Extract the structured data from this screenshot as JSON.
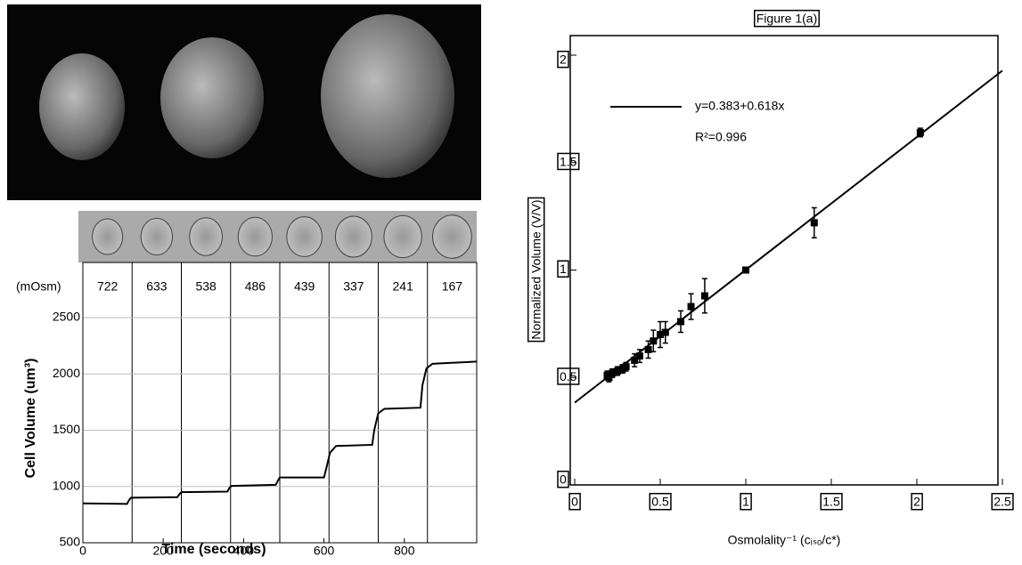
{
  "chart_data": [
    {
      "type": "line",
      "ylabel": "Cell Volume (um³)",
      "xlabel": "Time (seconds)",
      "column_header": "(mOsm)",
      "columns": [
        "722",
        "633",
        "538",
        "486",
        "439",
        "337",
        "241",
        "167"
      ],
      "xlim": [
        0,
        980
      ],
      "xticks": [
        0,
        200,
        400,
        600,
        800
      ],
      "ylim": [
        500,
        2500
      ],
      "yticks": [
        500,
        1000,
        1500,
        2000,
        2500
      ],
      "grid": true,
      "series": [
        {
          "color": "#000000",
          "x": [
            0,
            110,
            115,
            120,
            235,
            240,
            245,
            360,
            365,
            370,
            480,
            485,
            490,
            600,
            605,
            615,
            630,
            720,
            725,
            735,
            750,
            840,
            845,
            855,
            870,
            980
          ],
          "values": [
            850,
            845,
            880,
            900,
            905,
            930,
            950,
            955,
            990,
            1005,
            1015,
            1050,
            1080,
            1080,
            1150,
            1300,
            1360,
            1370,
            1500,
            1650,
            1690,
            1700,
            1900,
            2050,
            2090,
            2110
          ]
        }
      ]
    },
    {
      "type": "scatter",
      "title": "Figure 1(a)",
      "ylabel": "Normalized Volume (V/V)",
      "xlabel": "Osmolality⁻¹ (cᵢₛₒ/c*)",
      "annotation": "R²=0.996",
      "xlim": [
        0,
        2.5
      ],
      "xticks": [
        0,
        0.5,
        1,
        1.5,
        2,
        2.5
      ],
      "ylim": [
        0,
        2
      ],
      "yticks": [
        0,
        0.5,
        1,
        1.5,
        2
      ],
      "series": [
        {
          "type": "scatter",
          "color": "#000000",
          "x": [
            0.19,
            0.2,
            0.22,
            0.25,
            0.28,
            0.3,
            0.35,
            0.38,
            0.43,
            0.46,
            0.5,
            0.53,
            0.62,
            0.68,
            0.76,
            1.0,
            1.4,
            2.02
          ],
          "values": [
            0.51,
            0.5,
            0.52,
            0.53,
            0.54,
            0.55,
            0.58,
            0.6,
            0.63,
            0.67,
            0.7,
            0.71,
            0.76,
            0.83,
            0.88,
            1.0,
            1.22,
            1.64
          ],
          "errors": [
            0.02,
            0.02,
            0.02,
            0.02,
            0.02,
            0.02,
            0.03,
            0.03,
            0.04,
            0.05,
            0.06,
            0.05,
            0.05,
            0.06,
            0.08,
            0.01,
            0.07,
            0.02
          ]
        },
        {
          "type": "line",
          "name": "y=0.383+0.618x",
          "color": "#000000",
          "x": [
            0,
            2.5
          ],
          "values": [
            0.383,
            1.928
          ]
        }
      ]
    }
  ]
}
